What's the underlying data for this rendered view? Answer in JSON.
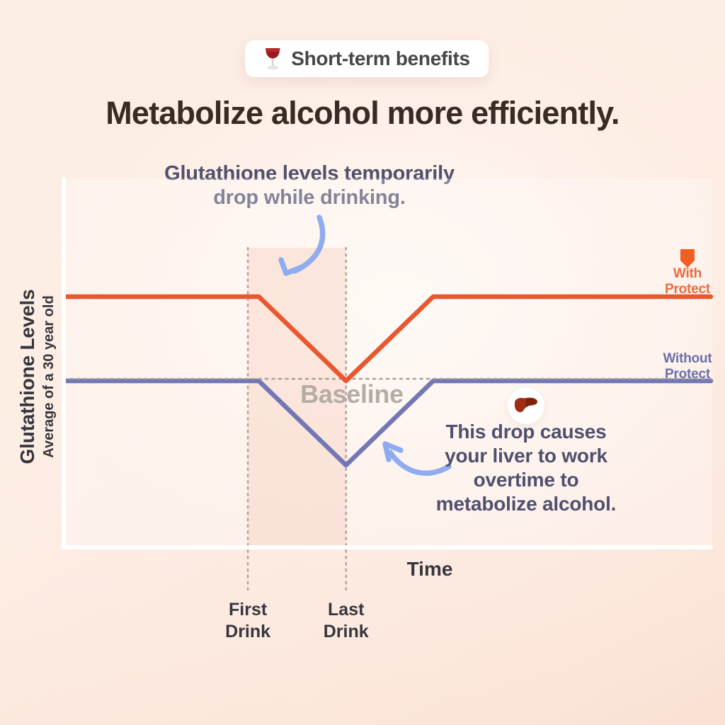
{
  "badge": {
    "icon": "wine-glass-icon",
    "label": "Short-term benefits"
  },
  "title": "Metabolize alcohol more efficiently.",
  "top_annotation": {
    "lines": [
      "Glutathione levels temporarily",
      "drop while drinking."
    ]
  },
  "y_axis": {
    "title": "Glutathione Levels",
    "subtitle": "Average of a 30 year old"
  },
  "x_axis": {
    "label": "Time"
  },
  "baseline_label": "Baseline",
  "legend": {
    "with_protect": {
      "lines": [
        "With",
        "Protect"
      ],
      "color": "#EB6A3F",
      "icon": "shield-icon"
    },
    "without_protect": {
      "lines": [
        "Without",
        "Protect"
      ],
      "color": "#6B70A9"
    }
  },
  "markers": {
    "first_drink": {
      "lines": [
        "First",
        "Drink"
      ]
    },
    "last_drink": {
      "lines": [
        "Last",
        "Drink"
      ]
    }
  },
  "liver_annotation": {
    "icon": "liver-icon",
    "lines": [
      "This drop causes",
      "your liver to work",
      "overtime to",
      "metabolize alcohol."
    ]
  },
  "colors": {
    "with_protect_line": "#E8572F",
    "without_protect_line": "#7378B4",
    "baseline_text": "#B5ACA6",
    "annotation_text": "#50506E",
    "title_text": "#3A2A23",
    "axis": "#FFFFFF",
    "dotted_guides": "#B1A79F",
    "arrow": "#8FACF1",
    "background_peach": "#FBE6DA"
  },
  "chart_data": {
    "type": "line",
    "title": "Metabolize alcohol more efficiently.",
    "xlabel": "Time",
    "ylabel": "Glutathione Levels (Average of a 30 year old)",
    "x_unit": "relative time of drinking session",
    "xlim": [
      0,
      10
    ],
    "ylim": [
      30,
      185
    ],
    "baseline_value": 100,
    "grid": false,
    "legend_position": "right",
    "series": [
      {
        "name": "With Protect",
        "color": "#E8572F",
        "points": [
          [
            0,
            135
          ],
          [
            3.0,
            135
          ],
          [
            4.35,
            100
          ],
          [
            5.7,
            135
          ],
          [
            10,
            135
          ]
        ]
      },
      {
        "name": "Without Protect",
        "color": "#7378B4",
        "points": [
          [
            0,
            100
          ],
          [
            3.0,
            100
          ],
          [
            4.35,
            65
          ],
          [
            5.7,
            100
          ],
          [
            10,
            100
          ]
        ]
      }
    ],
    "events": {
      "first_drink": 2.83,
      "last_drink": 4.35
    },
    "annotations": [
      "Glutathione levels temporarily drop while drinking.",
      "This drop causes your liver to work overtime to metabolize alcohol.",
      "Baseline"
    ]
  }
}
